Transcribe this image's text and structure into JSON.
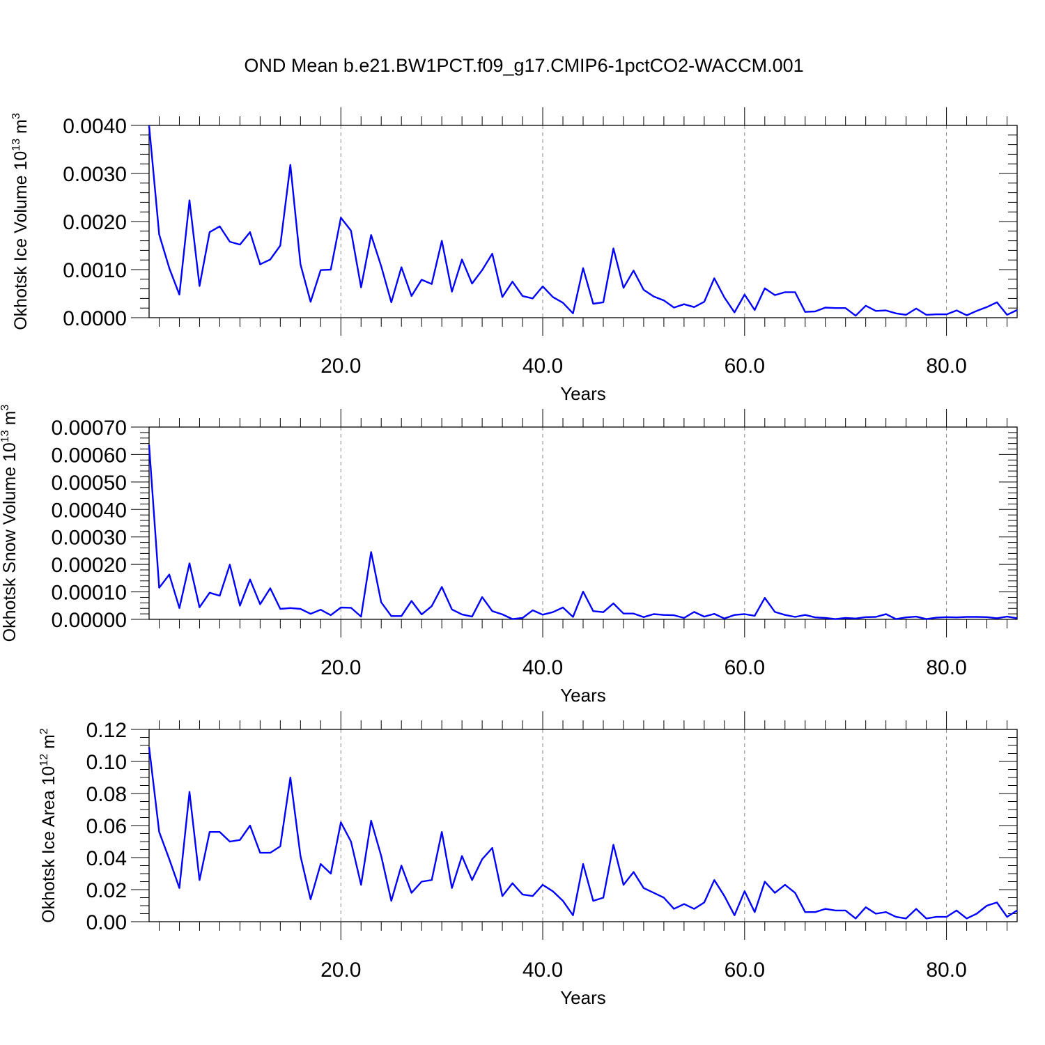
{
  "title": "OND Mean b.e21.BW1PCT.f09_g17.CMIP6-1pctCO2-WACCM.001",
  "chart_data": [
    {
      "type": "line",
      "ylabel_main": "Okhotsk Ice Volume 10",
      "ylabel_sup": "13",
      "ylabel_unit": " m",
      "ylabel_unit_sup": "3",
      "xlabel": "Years",
      "xlim": [
        1,
        87
      ],
      "ylim": [
        0,
        0.004
      ],
      "xticks": [
        20,
        40,
        60,
        80
      ],
      "xtick_labels": [
        "20.0",
        "40.0",
        "60.0",
        "80.0"
      ],
      "yticks": [
        0,
        0.001,
        0.002,
        0.003,
        0.004
      ],
      "ytick_labels": [
        "0.0000",
        "0.0010",
        "0.0020",
        "0.0030",
        "0.0040"
      ],
      "y_minor_step": 0.0002,
      "grid": "dashed vertical at major x ticks",
      "color": "#0000ff",
      "series": [
        {
          "x_start": 1,
          "values": [
            0.004,
            0.00173,
            0.00103,
            0.00048,
            0.00244,
            0.00066,
            0.00178,
            0.0019,
            0.00158,
            0.00152,
            0.00178,
            0.00111,
            0.00121,
            0.0015,
            0.00318,
            0.00111,
            0.00033,
            0.00099,
            0.001,
            0.00208,
            0.00181,
            0.00063,
            0.00172,
            0.00107,
            0.00032,
            0.00105,
            0.00045,
            0.00079,
            0.0007,
            0.0016,
            0.00054,
            0.00121,
            0.00071,
            0.00099,
            0.00133,
            0.00043,
            0.00075,
            0.00045,
            0.0004,
            0.00065,
            0.00043,
            0.00031,
            9e-05,
            0.00103,
            0.00029,
            0.00032,
            0.00144,
            0.00062,
            0.00098,
            0.00058,
            0.00044,
            0.00036,
            0.00021,
            0.00028,
            0.00022,
            0.00033,
            0.00082,
            0.00042,
            0.00011,
            0.00048,
            0.00016,
            0.00061,
            0.00047,
            0.00053,
            0.00053,
            0.00012,
            0.00013,
            0.00021,
            0.0002,
            0.0002,
            4e-05,
            0.00025,
            0.00014,
            0.00015,
            9e-05,
            6e-05,
            0.00019,
            6e-05,
            7e-05,
            7e-05,
            0.00015,
            5e-05,
            0.00014,
            0.00022,
            0.00032,
            6e-05,
            0.00016
          ]
        }
      ]
    },
    {
      "type": "line",
      "ylabel_main": "Okhotsk Snow Volume 10",
      "ylabel_sup": "13",
      "ylabel_unit": " m",
      "ylabel_unit_sup": "3",
      "xlabel": "Years",
      "xlim": [
        1,
        87
      ],
      "ylim": [
        0,
        0.0007
      ],
      "xticks": [
        20,
        40,
        60,
        80
      ],
      "xtick_labels": [
        "20.0",
        "40.0",
        "60.0",
        "80.0"
      ],
      "yticks": [
        0,
        0.0001,
        0.0002,
        0.0003,
        0.0004,
        0.0005,
        0.0006,
        0.0007
      ],
      "ytick_labels": [
        "0.00000",
        "0.00010",
        "0.00020",
        "0.00030",
        "0.00040",
        "0.00050",
        "0.00060",
        "0.00070"
      ],
      "y_minor_step": 2e-05,
      "grid": "dashed vertical at major x ticks",
      "color": "#0000ff",
      "series": [
        {
          "x_start": 1,
          "values": [
            0.000635,
            0.000115,
            0.000163,
            4.1e-05,
            0.000204,
            4.4e-05,
            9.7e-05,
            8.6e-05,
            0.000199,
            5e-05,
            0.000145,
            5.5e-05,
            0.000113,
            3.8e-05,
            4.1e-05,
            3.8e-05,
            2e-05,
            3.5e-05,
            1.5e-05,
            4.3e-05,
            4.2e-05,
            1e-05,
            0.000245,
            6.2e-05,
            1.2e-05,
            1.2e-05,
            6.7e-05,
            1.8e-05,
            4.8e-05,
            0.000118,
            3.6e-05,
            1.8e-05,
            1e-05,
            8.1e-05,
            3e-05,
            1.8e-05,
            1e-06,
            5e-06,
            3.3e-05,
            1.7e-05,
            2.6e-05,
            4.3e-05,
            9e-06,
            0.000101,
            3e-05,
            2.6e-05,
            5.8e-05,
            2.1e-05,
            2.1e-05,
            8e-06,
            1.9e-05,
            1.6e-05,
            1.5e-05,
            5e-06,
            2.7e-05,
            1e-05,
            2e-05,
            3e-06,
            1.6e-05,
            1.9e-05,
            1.3e-05,
            7.8e-05,
            2.7e-05,
            1.6e-05,
            9e-06,
            1.6e-05,
            7e-06,
            5e-06,
            1e-06,
            5e-06,
            3e-06,
            8e-06,
            9e-06,
            1.9e-05,
            1e-06,
            7e-06,
            1e-05,
            1e-06,
            6e-06,
            8e-06,
            7e-06,
            9e-06,
            9e-06,
            8e-06,
            4e-06,
            1e-05,
            4e-06
          ]
        }
      ]
    },
    {
      "type": "line",
      "ylabel_main": "Okhotsk Ice Area 10",
      "ylabel_sup": "12",
      "ylabel_unit": " m",
      "ylabel_unit_sup": "2",
      "xlabel": "Years",
      "xlim": [
        1,
        87
      ],
      "ylim": [
        0,
        0.12
      ],
      "xticks": [
        20,
        40,
        60,
        80
      ],
      "xtick_labels": [
        "20.0",
        "40.0",
        "60.0",
        "80.0"
      ],
      "yticks": [
        0,
        0.02,
        0.04,
        0.06,
        0.08,
        0.1,
        0.12
      ],
      "ytick_labels": [
        "0.00",
        "0.02",
        "0.04",
        "0.06",
        "0.08",
        "0.10",
        "0.12"
      ],
      "y_minor_step": 0.005,
      "grid": "dashed vertical at major x ticks",
      "color": "#0000ff",
      "series": [
        {
          "x_start": 1,
          "values": [
            0.109,
            0.056,
            0.039,
            0.021,
            0.081,
            0.026,
            0.056,
            0.056,
            0.05,
            0.051,
            0.06,
            0.043,
            0.043,
            0.047,
            0.09,
            0.041,
            0.014,
            0.036,
            0.03,
            0.062,
            0.05,
            0.023,
            0.063,
            0.041,
            0.013,
            0.035,
            0.018,
            0.025,
            0.026,
            0.056,
            0.021,
            0.041,
            0.026,
            0.039,
            0.046,
            0.016,
            0.024,
            0.017,
            0.016,
            0.023,
            0.019,
            0.013,
            0.004,
            0.036,
            0.013,
            0.015,
            0.048,
            0.023,
            0.031,
            0.021,
            0.018,
            0.015,
            0.008,
            0.011,
            0.008,
            0.012,
            0.026,
            0.016,
            0.004,
            0.019,
            0.006,
            0.025,
            0.018,
            0.023,
            0.018,
            0.006,
            0.006,
            0.008,
            0.007,
            0.007,
            0.002,
            0.009,
            0.005,
            0.006,
            0.003,
            0.002,
            0.008,
            0.002,
            0.003,
            0.003,
            0.007,
            0.002,
            0.005,
            0.01,
            0.012,
            0.003,
            0.007
          ]
        }
      ]
    }
  ]
}
